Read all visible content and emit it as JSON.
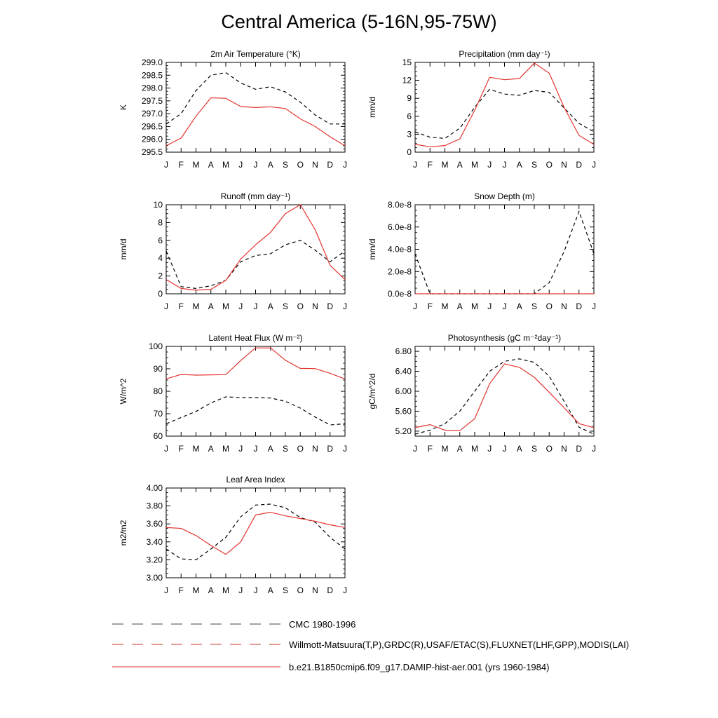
{
  "title": "Central America (5-16N,95-75W)",
  "legend": [
    {
      "label": "CMC 1980-1996",
      "style": "dash",
      "color": "#444444"
    },
    {
      "label": "Willmott-Matsuura(T,P),GRDC(R),USAF/ETAC(S),FLUXNET(LHF,GPP),MODIS(LAI)",
      "style": "dash",
      "color": "#c0392b"
    },
    {
      "label": "b.e21.B1850cmip6.f09_g17.DAMIP-hist-aer.001 (yrs 1960-1984)",
      "style": "solid",
      "color": "#e3342f"
    }
  ],
  "chart_data": [
    {
      "type": "line",
      "title": "2m Air Temperature (°K)",
      "ylabel": "K",
      "x": [
        "J",
        "F",
        "M",
        "A",
        "M",
        "J",
        "J",
        "A",
        "S",
        "O",
        "N",
        "D",
        "J"
      ],
      "ylim": [
        295.5,
        299.0
      ],
      "yticks": [
        "295.5",
        "296.0",
        "296.5",
        "297.0",
        "297.5",
        "298.0",
        "298.5",
        "299.0"
      ],
      "series": [
        {
          "style": "dash",
          "color": "#000000",
          "values": [
            296.6,
            297.0,
            297.9,
            298.5,
            298.6,
            298.2,
            297.95,
            298.05,
            297.85,
            297.45,
            296.95,
            296.6,
            296.6
          ]
        },
        {
          "style": "solid",
          "color": "#e3342f",
          "values": [
            295.75,
            296.05,
            296.9,
            297.62,
            297.6,
            297.28,
            297.24,
            297.27,
            297.2,
            296.8,
            296.5,
            296.1,
            295.75
          ]
        }
      ]
    },
    {
      "type": "line",
      "title": "Precipitation (mm day⁻¹)",
      "ylabel": "mm/d",
      "x": [
        "J",
        "F",
        "M",
        "A",
        "M",
        "J",
        "J",
        "A",
        "S",
        "O",
        "N",
        "D",
        "J"
      ],
      "ylim": [
        0,
        15
      ],
      "yticks": [
        "0",
        "3",
        "6",
        "9",
        "12",
        "15"
      ],
      "series": [
        {
          "style": "dash",
          "color": "#000000",
          "values": [
            3.4,
            2.5,
            2.3,
            4.0,
            7.5,
            10.5,
            9.7,
            9.5,
            10.3,
            10.0,
            7.4,
            4.8,
            3.4
          ]
        },
        {
          "style": "solid",
          "color": "#e3342f",
          "values": [
            1.3,
            0.9,
            1.1,
            2.2,
            7.0,
            12.5,
            12.1,
            12.3,
            14.9,
            13.2,
            7.5,
            2.8,
            1.3
          ]
        }
      ]
    },
    {
      "type": "line",
      "title": "Runoff (mm day⁻¹)",
      "ylabel": "mm/d",
      "x": [
        "J",
        "F",
        "M",
        "A",
        "M",
        "J",
        "J",
        "A",
        "S",
        "O",
        "N",
        "D",
        "J"
      ],
      "ylim": [
        0,
        10
      ],
      "yticks": [
        "0",
        "2",
        "4",
        "6",
        "8",
        "10"
      ],
      "series": [
        {
          "style": "dash",
          "color": "#000000",
          "values": [
            4.8,
            0.8,
            0.6,
            0.9,
            1.5,
            3.6,
            4.3,
            4.5,
            5.5,
            6.0,
            4.9,
            3.6,
            4.8
          ]
        },
        {
          "style": "solid",
          "color": "#e3342f",
          "values": [
            1.6,
            0.6,
            0.4,
            0.5,
            1.5,
            3.9,
            5.5,
            6.9,
            9.0,
            10.0,
            7.2,
            3.2,
            1.6
          ]
        }
      ]
    },
    {
      "type": "line",
      "title": "Snow Depth (m)",
      "ylabel": "mm/d",
      "x": [
        "J",
        "F",
        "M",
        "A",
        "M",
        "J",
        "J",
        "A",
        "S",
        "O",
        "N",
        "D",
        "J"
      ],
      "ylim": [
        0,
        8e-08
      ],
      "yticks": [
        "0.0e-8",
        "2.0e-8",
        "4.0e-8",
        "6.0e-8",
        "8.0e-8"
      ],
      "series": [
        {
          "style": "dash",
          "color": "#000000",
          "values": [
            3.6e-08,
            0,
            0,
            0,
            0,
            0,
            0,
            0,
            0,
            1e-08,
            3.8e-08,
            7.4e-08,
            3.6e-08
          ]
        },
        {
          "style": "solid",
          "color": "#e3342f",
          "values": [
            0,
            0,
            0,
            0,
            0,
            0,
            0,
            0,
            0,
            0,
            0,
            0,
            0
          ]
        }
      ]
    },
    {
      "type": "line",
      "title": "Latent Heat Flux (W m⁻²)",
      "ylabel": "W/m^2",
      "x": [
        "J",
        "F",
        "M",
        "A",
        "M",
        "J",
        "J",
        "A",
        "S",
        "O",
        "N",
        "D",
        "J"
      ],
      "ylim": [
        60,
        100
      ],
      "yticks": [
        "60",
        "70",
        "80",
        "90",
        "100"
      ],
      "series": [
        {
          "style": "dash",
          "color": "#000000",
          "values": [
            65.5,
            68.3,
            71.0,
            74.8,
            77.5,
            77.2,
            77.2,
            77.0,
            75.5,
            72.5,
            68.5,
            65.0,
            65.5
          ]
        },
        {
          "style": "solid",
          "color": "#e3342f",
          "values": [
            85.5,
            87.5,
            87.2,
            87.3,
            87.4,
            93.7,
            99.3,
            99.3,
            93.8,
            90.2,
            90.1,
            88.0,
            85.5
          ]
        }
      ]
    },
    {
      "type": "line",
      "title": "Photosynthesis (gC m⁻²day⁻¹)",
      "ylabel": "gC/m^2/d",
      "x": [
        "J",
        "F",
        "M",
        "A",
        "M",
        "J",
        "J",
        "A",
        "S",
        "O",
        "N",
        "D",
        "J"
      ],
      "ylim": [
        5.1,
        6.9
      ],
      "yticks": [
        "5.20",
        "5.60",
        "6.00",
        "6.40",
        "6.80"
      ],
      "series": [
        {
          "style": "dash",
          "color": "#000000",
          "values": [
            5.14,
            5.22,
            5.35,
            5.6,
            6.0,
            6.4,
            6.6,
            6.65,
            6.58,
            6.3,
            5.8,
            5.28,
            5.14
          ]
        },
        {
          "style": "solid",
          "color": "#e3342f",
          "values": [
            5.27,
            5.33,
            5.22,
            5.21,
            5.45,
            6.15,
            6.55,
            6.48,
            6.28,
            5.98,
            5.67,
            5.35,
            5.27
          ]
        }
      ]
    },
    {
      "type": "line",
      "title": "Leaf Area Index",
      "ylabel": "m2/m2",
      "x": [
        "J",
        "F",
        "M",
        "A",
        "M",
        "J",
        "J",
        "A",
        "S",
        "O",
        "N",
        "D",
        "J"
      ],
      "ylim": [
        3.0,
        4.0
      ],
      "yticks": [
        "3.00",
        "3.20",
        "3.40",
        "3.60",
        "3.80",
        "4.00"
      ],
      "series": [
        {
          "style": "dash",
          "color": "#000000",
          "values": [
            3.32,
            3.21,
            3.2,
            3.32,
            3.45,
            3.68,
            3.81,
            3.82,
            3.78,
            3.67,
            3.62,
            3.45,
            3.32
          ]
        },
        {
          "style": "solid",
          "color": "#e3342f",
          "values": [
            3.56,
            3.55,
            3.47,
            3.36,
            3.26,
            3.4,
            3.7,
            3.73,
            3.69,
            3.66,
            3.63,
            3.59,
            3.56
          ]
        }
      ]
    }
  ]
}
